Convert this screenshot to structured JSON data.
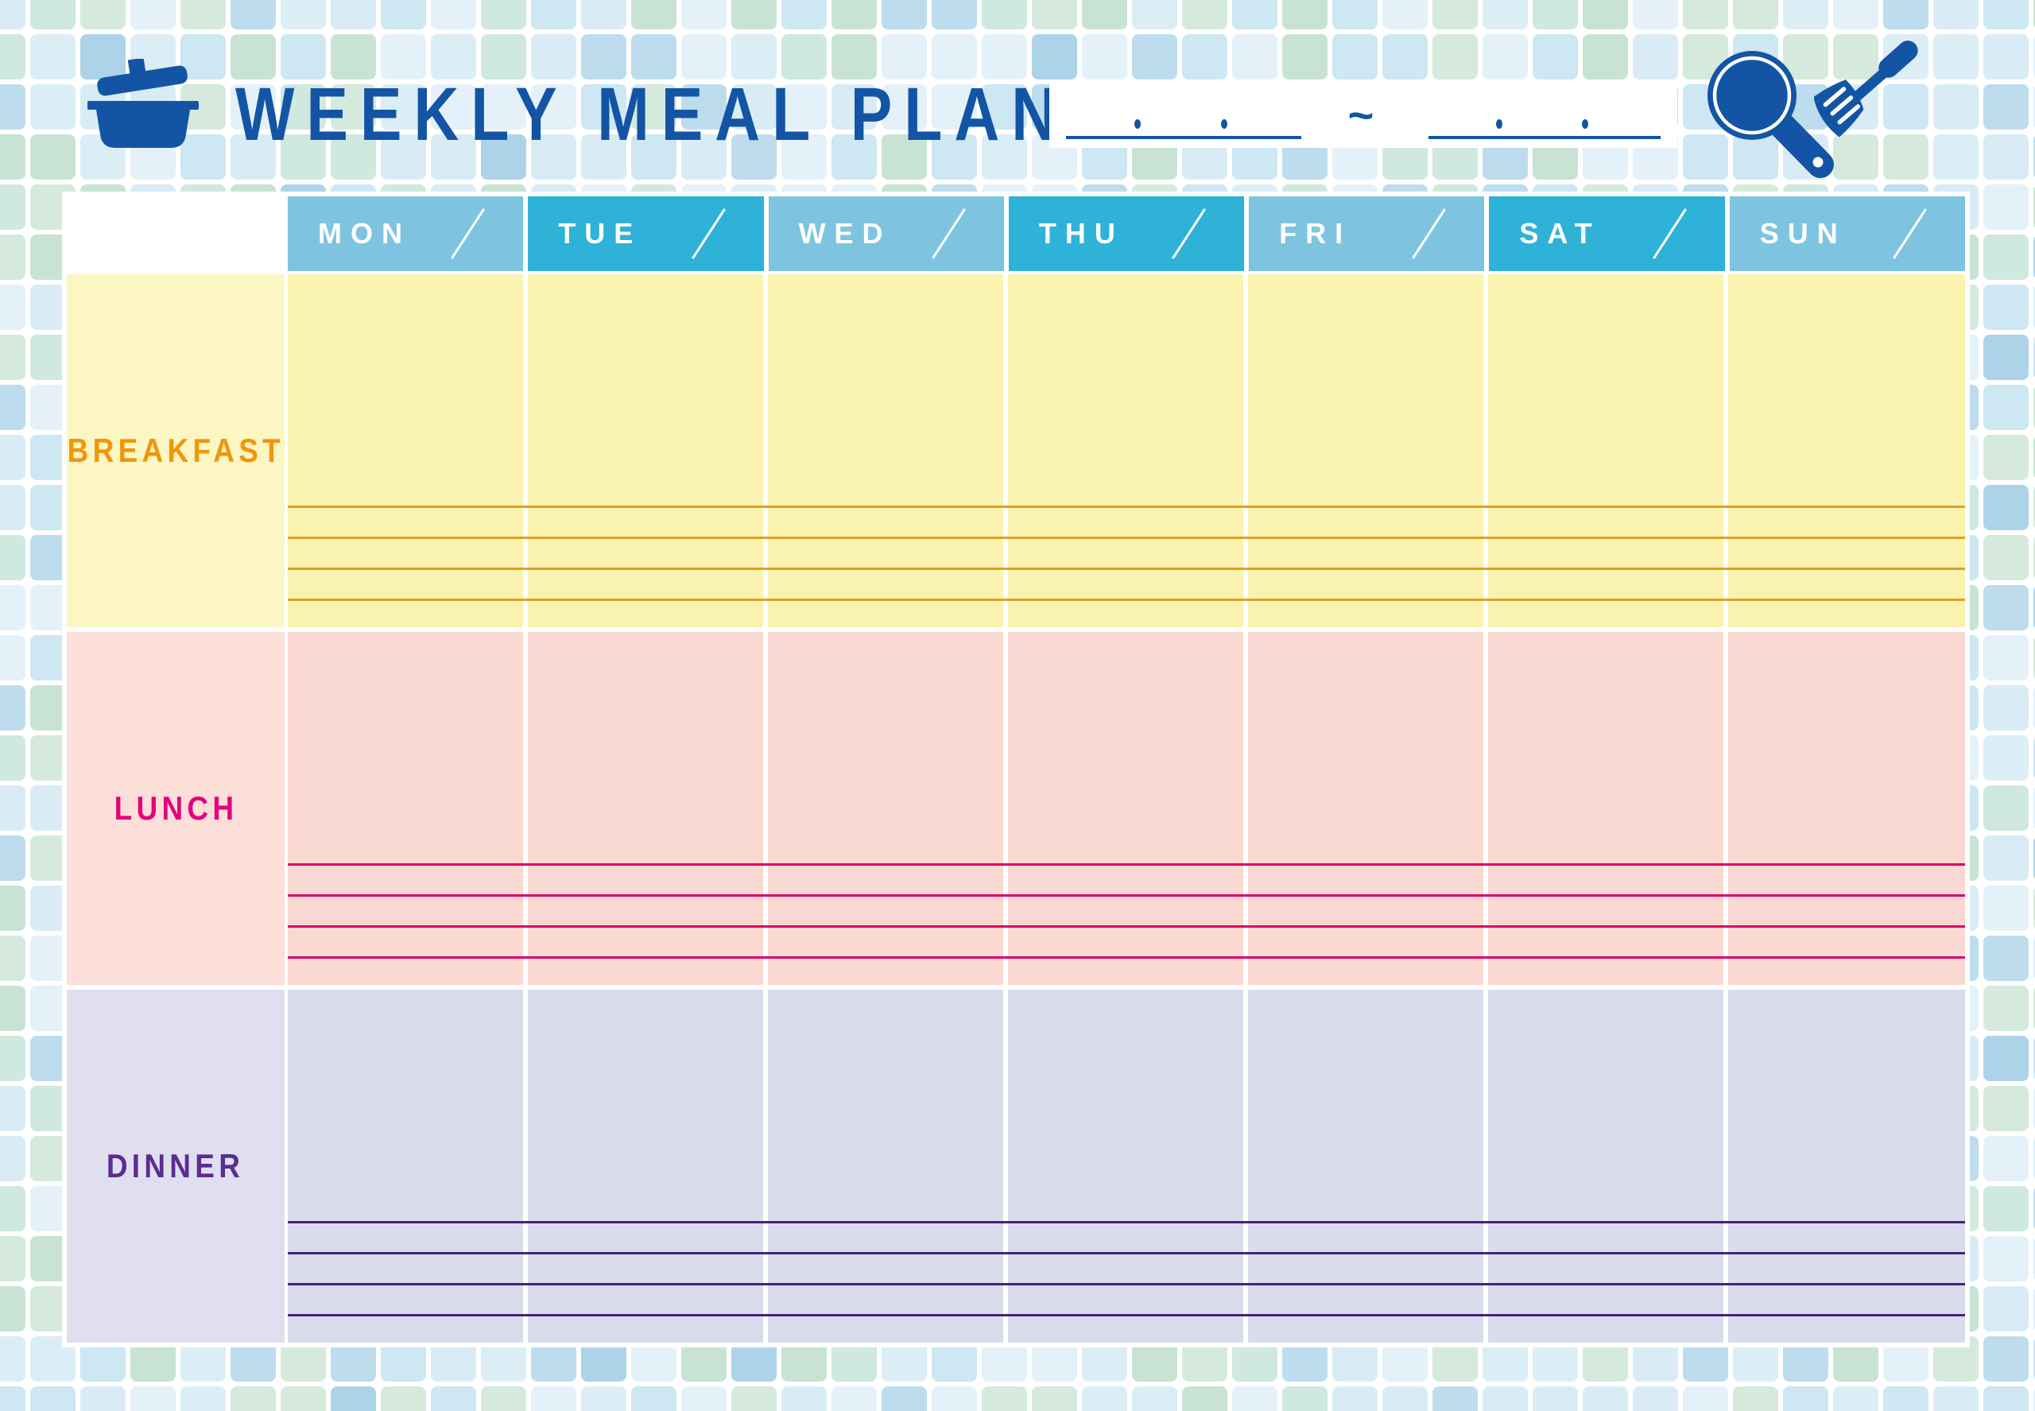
{
  "header": {
    "title": "WEEKLY MEAL PLAN",
    "date_separator": "~",
    "left_icon": "pot-icon",
    "right_icons": [
      "frying-pan-icon",
      "spatula-icon"
    ],
    "date_fields": {
      "start_value": "",
      "end_value": ""
    }
  },
  "days": [
    {
      "label": "MON",
      "variant": "light"
    },
    {
      "label": "TUE",
      "variant": "dark"
    },
    {
      "label": "WED",
      "variant": "light"
    },
    {
      "label": "THU",
      "variant": "dark"
    },
    {
      "label": "FRI",
      "variant": "light"
    },
    {
      "label": "SAT",
      "variant": "dark"
    },
    {
      "label": "SUN",
      "variant": "light"
    }
  ],
  "meals": [
    {
      "label": "BREAKFAST",
      "label_color": "#f0960b",
      "label_bg": "#fcf6c2",
      "cell_bg": "#faf2af",
      "line_color": "#dda02b"
    },
    {
      "label": "LUNCH",
      "label_color": "#e4007f",
      "label_bg": "#fbdfd8",
      "cell_bg": "#f9d9d1",
      "line_color": "#d8006f"
    },
    {
      "label": "DINNER",
      "label_color": "#5a2d90",
      "label_bg": "#dfdff0",
      "cell_bg": "#dadcec",
      "line_color": "#45217d"
    }
  ],
  "table": {
    "columns": 7,
    "rows": 3,
    "lines_per_row": 4
  },
  "colors": {
    "accent_blue": "#1355a4",
    "header_light": "#7ec4e0",
    "header_dark": "#2fb2d8"
  },
  "background": {
    "name": "mosaic-tiles",
    "tile_palette": [
      "#d9ecf6",
      "#cde7f3",
      "#bddcee",
      "#e4f1f9",
      "#d5eadd",
      "#c8e3d4",
      "#dceef5",
      "#cfe8e0",
      "#add3e8"
    ]
  }
}
